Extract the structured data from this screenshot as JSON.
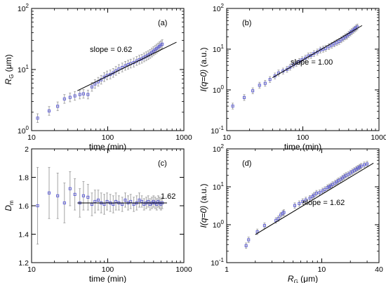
{
  "figure": {
    "marker_color": "#5b5bd6",
    "errorbar_color": "#9a9a9a",
    "fit_color": "#000000"
  },
  "chart_data": [
    {
      "id": "a",
      "type": "scatter",
      "panel_label": "(a)",
      "xlabel": "time (min)",
      "ylabel_main": "R",
      "ylabel_sub": "G",
      "ylabel_rest": " (μm)",
      "xscale": "log",
      "yscale": "log",
      "xlim": [
        10,
        1000
      ],
      "ylim": [
        1,
        100
      ],
      "x_ticks": [
        "10",
        "100",
        "1000"
      ],
      "y_ticks": [
        "10^0",
        "10^1",
        "10^2"
      ],
      "annotation": "slope = 0.62",
      "fit": {
        "x": [
          40,
          800
        ],
        "y": [
          4.5,
          28
        ]
      },
      "series": [
        {
          "x": [
            12,
            17,
            22,
            27,
            32,
            37,
            43,
            48,
            55,
            62,
            68,
            75,
            82,
            90,
            98,
            108,
            118,
            128,
            140,
            155,
            170,
            185,
            200,
            220,
            240,
            260,
            280,
            300,
            320,
            340,
            360,
            380,
            400,
            420,
            440,
            460,
            480,
            500,
            520
          ],
          "y": [
            1.6,
            2.1,
            2.5,
            3.3,
            3.5,
            3.7,
            3.9,
            4.0,
            3.9,
            5.2,
            5.8,
            6.3,
            6.8,
            7.5,
            8.0,
            8.3,
            8.8,
            9.5,
            10.2,
            10.8,
            11.5,
            12.0,
            12.5,
            13.0,
            13.8,
            14.5,
            15.0,
            15.8,
            16.5,
            17.2,
            18.0,
            19.0,
            20.0,
            21.0,
            22.0,
            23.0,
            24.0,
            25.0,
            26.0
          ]
        }
      ]
    },
    {
      "id": "b",
      "type": "scatter",
      "panel_label": "(b)",
      "xlabel": "time (min)",
      "ylabel_main": "I(q=0)",
      "ylabel_sub": "",
      "ylabel_rest": " (a.u.)",
      "xscale": "log",
      "yscale": "log",
      "xlim": [
        10,
        1000
      ],
      "ylim": [
        0.1,
        100
      ],
      "x_ticks": [
        "10",
        "100",
        "1000"
      ],
      "y_ticks": [
        "10^-1",
        "10^0",
        "10^1",
        "10^2"
      ],
      "annotation": "slope = 1.00",
      "fit": {
        "x": [
          40,
          600
        ],
        "y": [
          2.0,
          38
        ]
      },
      "series": [
        {
          "x": [
            12,
            17,
            22,
            27,
            32,
            37,
            43,
            48,
            55,
            62,
            68,
            75,
            82,
            90,
            98,
            108,
            118,
            128,
            140,
            155,
            170,
            185,
            200,
            220,
            240,
            260,
            280,
            300,
            320,
            340,
            360,
            380,
            400,
            420,
            440,
            460,
            480,
            500,
            520
          ],
          "y": [
            0.4,
            0.65,
            0.95,
            1.3,
            1.45,
            1.8,
            2.2,
            2.6,
            2.9,
            3.2,
            3.6,
            4.1,
            4.5,
            5.0,
            5.5,
            6.0,
            6.8,
            7.0,
            7.8,
            8.5,
            9.5,
            10.0,
            10.5,
            11.5,
            12.5,
            13.5,
            14.5,
            15.5,
            17.0,
            18.5,
            20.0,
            21.0,
            23.0,
            25.0,
            27.0,
            29.0,
            31.0,
            33.0,
            35.0
          ]
        }
      ]
    },
    {
      "id": "c",
      "type": "scatter",
      "panel_label": "(c)",
      "xlabel": "time (min)",
      "ylabel_main": "D",
      "ylabel_sub": "m",
      "ylabel_rest": "",
      "xscale": "log",
      "yscale": "linear",
      "xlim": [
        10,
        1000
      ],
      "ylim": [
        1.2,
        2.0
      ],
      "x_ticks": [
        "10",
        "100",
        "1000"
      ],
      "y_ticks": [
        "1.2",
        "1.4",
        "1.6",
        "1.8",
        "2"
      ],
      "annotation": "1.62",
      "fit": {
        "x": [
          40,
          600
        ],
        "y": [
          1.62,
          1.62
        ]
      },
      "series": [
        {
          "x": [
            12,
            17,
            22,
            27,
            32,
            37,
            43,
            48,
            55,
            62,
            68,
            75,
            82,
            90,
            98,
            108,
            118,
            128,
            140,
            155,
            170,
            185,
            200,
            220,
            240,
            260,
            280,
            300,
            320,
            340,
            360,
            380,
            400,
            420,
            440,
            460,
            480,
            500,
            520
          ],
          "y": [
            1.6,
            1.69,
            1.67,
            1.62,
            1.72,
            1.68,
            1.62,
            1.67,
            1.66,
            1.61,
            1.63,
            1.64,
            1.62,
            1.61,
            1.63,
            1.62,
            1.61,
            1.63,
            1.62,
            1.61,
            1.64,
            1.62,
            1.63,
            1.61,
            1.62,
            1.64,
            1.63,
            1.61,
            1.62,
            1.63,
            1.61,
            1.62,
            1.63,
            1.62,
            1.61,
            1.63,
            1.62,
            1.61,
            1.62
          ],
          "err": [
            0.27,
            0.18,
            0.16,
            0.14,
            0.12,
            0.11,
            0.1,
            0.1,
            0.09,
            0.08,
            0.08,
            0.07,
            0.07,
            0.07,
            0.06,
            0.06,
            0.06,
            0.06,
            0.05,
            0.05,
            0.05,
            0.05,
            0.05,
            0.05,
            0.05,
            0.05,
            0.04,
            0.04,
            0.04,
            0.04,
            0.04,
            0.04,
            0.04,
            0.04,
            0.04,
            0.04,
            0.04,
            0.04,
            0.04
          ]
        }
      ]
    },
    {
      "id": "d",
      "type": "scatter",
      "panel_label": "(d)",
      "xlabel_main": "R",
      "xlabel_sub": "G",
      "xlabel_rest": " (μm)",
      "ylabel_main": "I(q=0)",
      "ylabel_sub": "",
      "ylabel_rest": " (a.u.)",
      "xscale": "log",
      "yscale": "log",
      "xlim": [
        1,
        40
      ],
      "ylim": [
        0.1,
        100
      ],
      "x_ticks": [
        "1",
        "10",
        "40"
      ],
      "y_ticks": [
        "10^-1",
        "10^0",
        "10^1",
        "10^2"
      ],
      "annotation": "slope = 1.62",
      "fit": {
        "x": [
          2,
          35
        ],
        "y": [
          0.55,
          42
        ]
      },
      "series": [
        {
          "x": [
            1.6,
            1.7,
            2.1,
            2.5,
            3.3,
            3.5,
            3.7,
            3.9,
            4.0,
            5.2,
            5.8,
            6.3,
            6.8,
            7.5,
            8.0,
            8.3,
            8.8,
            9.5,
            10.2,
            10.8,
            11.5,
            12.0,
            12.5,
            13.0,
            13.8,
            14.5,
            15.0,
            15.8,
            16.5,
            17.2,
            18.0,
            19.0,
            20.0,
            21.0,
            22.0,
            23.0,
            24.0,
            25.0,
            26.0,
            28.0,
            30.0
          ],
          "y": [
            0.28,
            0.4,
            0.65,
            0.95,
            1.3,
            1.45,
            1.8,
            2.0,
            2.1,
            3.2,
            3.6,
            4.1,
            4.5,
            5.0,
            5.5,
            6.0,
            6.8,
            7.0,
            7.8,
            8.5,
            9.5,
            10.0,
            10.5,
            11.5,
            12.5,
            13.5,
            14.5,
            15.5,
            17.0,
            18.5,
            20.0,
            21.0,
            23.0,
            25.0,
            27.0,
            29.0,
            31.0,
            33.0,
            35.0,
            38.0,
            40.0
          ]
        }
      ]
    }
  ]
}
